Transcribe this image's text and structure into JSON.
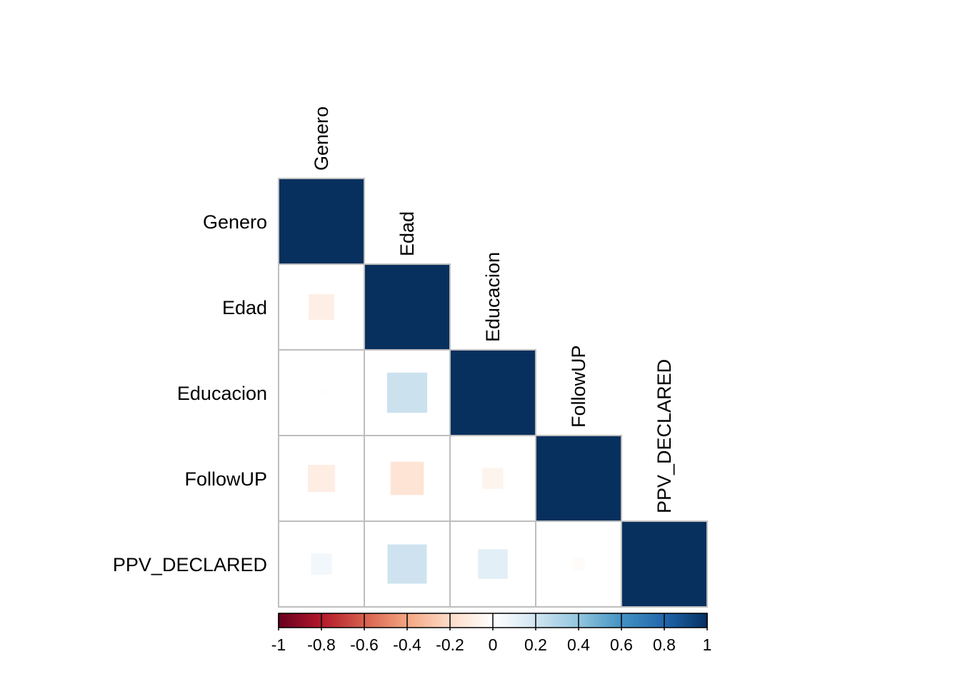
{
  "chart_data": {
    "type": "heatmap",
    "style": "correlation-matrix-lower-triangle-square-glyphs",
    "variables": [
      "Genero",
      "Edad",
      "Educacion",
      "FollowUP",
      "PPV_DECLARED"
    ],
    "matrix": [
      [
        1.0,
        null,
        null,
        null,
        null
      ],
      [
        -0.09,
        1.0,
        null,
        null,
        null
      ],
      [
        0.01,
        0.22,
        1.0,
        null,
        null
      ],
      [
        -0.1,
        -0.15,
        -0.06,
        1.0,
        null
      ],
      [
        0.06,
        0.21,
        0.12,
        -0.02,
        1.0
      ]
    ],
    "colorbar": {
      "range": [
        -1,
        1
      ],
      "tick_labels": [
        "-1",
        "-0.8",
        "-0.6",
        "-0.4",
        "-0.2",
        "0",
        "0.2",
        "0.4",
        "0.6",
        "0.8",
        "1"
      ],
      "colors": [
        "#67001F",
        "#B2182B",
        "#D6604D",
        "#F4A582",
        "#FDDBC7",
        "#FFFFFF",
        "#D1E5F0",
        "#92C5DE",
        "#4393C3",
        "#2166AC",
        "#053061"
      ],
      "placement": "bottom"
    },
    "grid": true,
    "grid_color": "#BEBEBE",
    "diagonal_color": "#08305E"
  }
}
